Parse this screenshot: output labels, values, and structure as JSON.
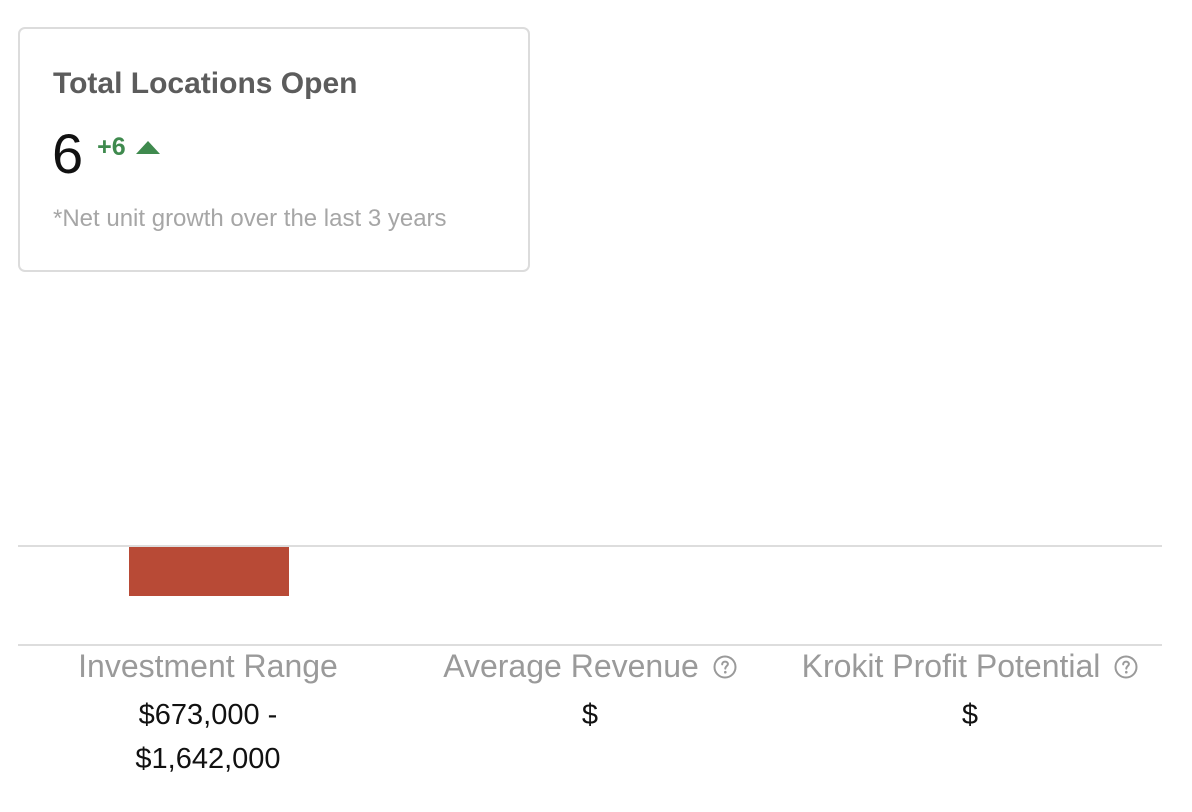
{
  "kpi_card": {
    "title": "Total Locations Open",
    "value": "6",
    "delta": "+6",
    "delta_direction": "up-arrow-icon",
    "note": "*Net unit growth over the last 3 years",
    "delta_color": "#3f8a4e"
  },
  "investment_bar": {
    "color": "#b84a36"
  },
  "metrics": {
    "investment": {
      "label": "Investment Range",
      "value": "$673,000 - $1,642,000"
    },
    "revenue": {
      "label": "Average Revenue",
      "value": "$",
      "icon": "help-icon"
    },
    "profit": {
      "label": "Krokit Profit Potential",
      "value": "$",
      "icon": "help-icon"
    }
  }
}
